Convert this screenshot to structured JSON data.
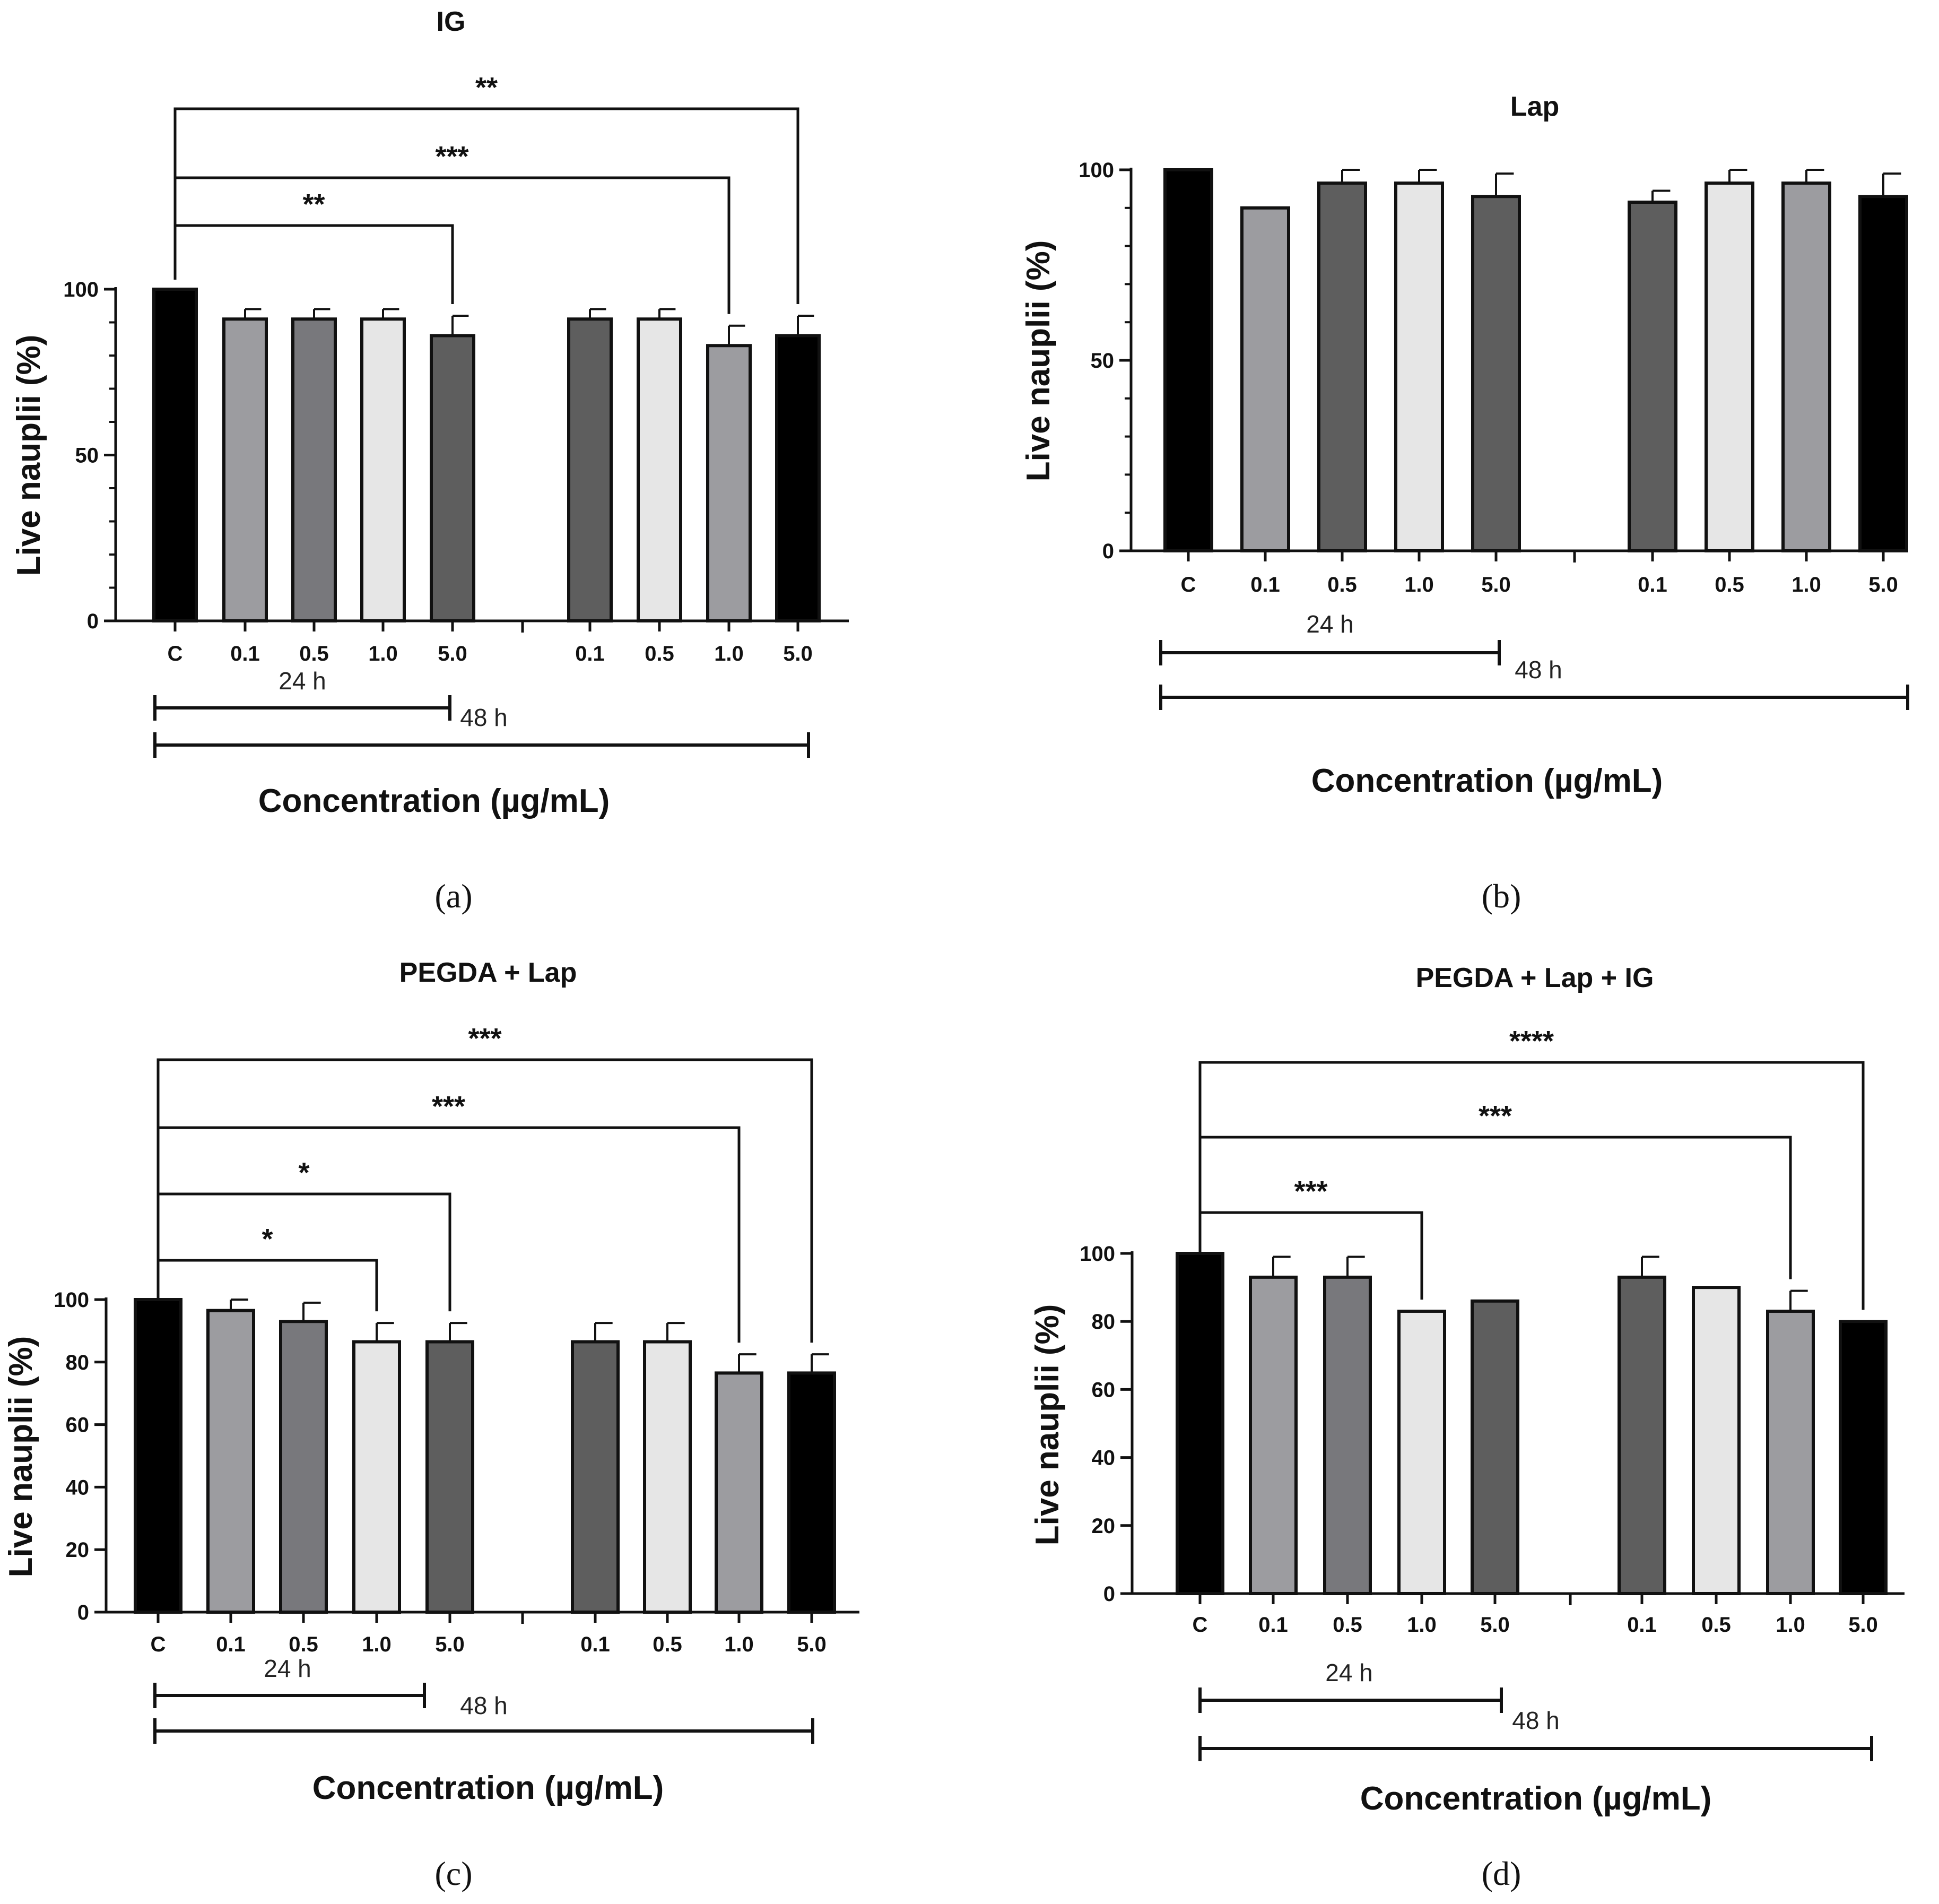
{
  "chart_data": [
    {
      "panel_label": "(a)",
      "type": "bar",
      "title": "IG",
      "ylabel": "Live nauplii (%)",
      "xlabel": "Concentration (µg/mL)",
      "ylim": [
        0,
        100
      ],
      "yticks": [
        "0",
        "50",
        "100"
      ],
      "categories": [
        "C",
        "0.1",
        "0.5",
        "1.0",
        "5.0",
        "0.1",
        "0.5",
        "1.0",
        "5.0"
      ],
      "values": [
        100,
        91,
        91,
        91,
        86,
        91,
        91,
        83,
        86
      ],
      "errors": [
        0,
        3,
        3,
        3,
        6,
        3,
        3,
        6,
        6
      ],
      "fills": [
        "#000000",
        "#9c9ca0",
        "#78787c",
        "#e6e6e6",
        "#5e5e5e",
        "#5e5e5e",
        "#e6e6e6",
        "#9c9ca0",
        "#000000"
      ],
      "group_labels": [
        "24 h",
        "48 h"
      ],
      "significance": [
        {
          "from": 0,
          "to": 4,
          "label": "**"
        },
        {
          "from": 0,
          "to": 7,
          "label": "***"
        },
        {
          "from": 0,
          "to": 8,
          "label": "**"
        }
      ]
    },
    {
      "panel_label": "(b)",
      "type": "bar",
      "title": "Lap",
      "ylabel": "Live nauplii (%)",
      "xlabel": "Concentration (µg/mL)",
      "ylim": [
        0,
        100
      ],
      "yticks": [
        "0",
        "50",
        "100"
      ],
      "categories": [
        "C",
        "0.1",
        "0.5",
        "1.0",
        "5.0",
        "0.1",
        "0.5",
        "1.0",
        "5.0"
      ],
      "values": [
        100,
        90,
        96.5,
        96.5,
        93,
        91.5,
        96.5,
        96.5,
        93
      ],
      "errors": [
        0,
        0,
        3.5,
        3.5,
        6,
        3,
        3.5,
        3.5,
        6
      ],
      "fills": [
        "#000000",
        "#9c9ca0",
        "#5e5e5e",
        "#e6e6e6",
        "#5e5e5e",
        "#5e5e5e",
        "#e6e6e6",
        "#9c9ca0",
        "#000000"
      ],
      "group_labels": [
        "24 h",
        "48 h"
      ],
      "significance": []
    },
    {
      "panel_label": "(c)",
      "type": "bar",
      "title": "PEGDA + Lap",
      "ylabel": "Live nauplii (%)",
      "xlabel": "Concentration (µg/mL)",
      "ylim": [
        0,
        100
      ],
      "yticks": [
        "0",
        "20",
        "40",
        "60",
        "80",
        "100"
      ],
      "categories": [
        "C",
        "0.1",
        "0.5",
        "1.0",
        "5.0",
        "0.1",
        "0.5",
        "1.0",
        "5.0"
      ],
      "values": [
        100,
        96.5,
        93,
        86.5,
        86.5,
        86.5,
        86.5,
        76.5,
        76.5
      ],
      "errors": [
        0,
        3.5,
        6,
        6,
        6,
        6,
        6,
        6,
        6
      ],
      "fills": [
        "#000000",
        "#9c9ca0",
        "#78787c",
        "#e6e6e6",
        "#5e5e5e",
        "#5e5e5e",
        "#e6e6e6",
        "#9c9ca0",
        "#000000"
      ],
      "group_labels": [
        "24 h",
        "48 h"
      ],
      "significance": [
        {
          "from": 0,
          "to": 3,
          "label": "*"
        },
        {
          "from": 0,
          "to": 4,
          "label": "*"
        },
        {
          "from": 0,
          "to": 7,
          "label": "***"
        },
        {
          "from": 0,
          "to": 8,
          "label": "***"
        }
      ]
    },
    {
      "panel_label": "(d)",
      "type": "bar",
      "title": "PEGDA + Lap  + IG",
      "ylabel": "Live nauplii (%)",
      "xlabel": "Concentration (µg/mL)",
      "ylim": [
        0,
        100
      ],
      "yticks": [
        "0",
        "20",
        "40",
        "60",
        "80",
        "100"
      ],
      "categories": [
        "C",
        "0.1",
        "0.5",
        "1.0",
        "5.0",
        "0.1",
        "0.5",
        "1.0",
        "5.0"
      ],
      "values": [
        100,
        93,
        93,
        83,
        86,
        93,
        90,
        83,
        80
      ],
      "errors": [
        0,
        6,
        6,
        0,
        0,
        6,
        0,
        6,
        0
      ],
      "fills": [
        "#000000",
        "#9c9ca0",
        "#78787c",
        "#e6e6e6",
        "#5e5e5e",
        "#5e5e5e",
        "#e6e6e6",
        "#9c9ca0",
        "#000000"
      ],
      "group_labels": [
        "24 h",
        "48 h"
      ],
      "significance": [
        {
          "from": 0,
          "to": 3,
          "label": "***"
        },
        {
          "from": 0,
          "to": 7,
          "label": "***"
        },
        {
          "from": 0,
          "to": 8,
          "label": "****"
        }
      ]
    }
  ]
}
